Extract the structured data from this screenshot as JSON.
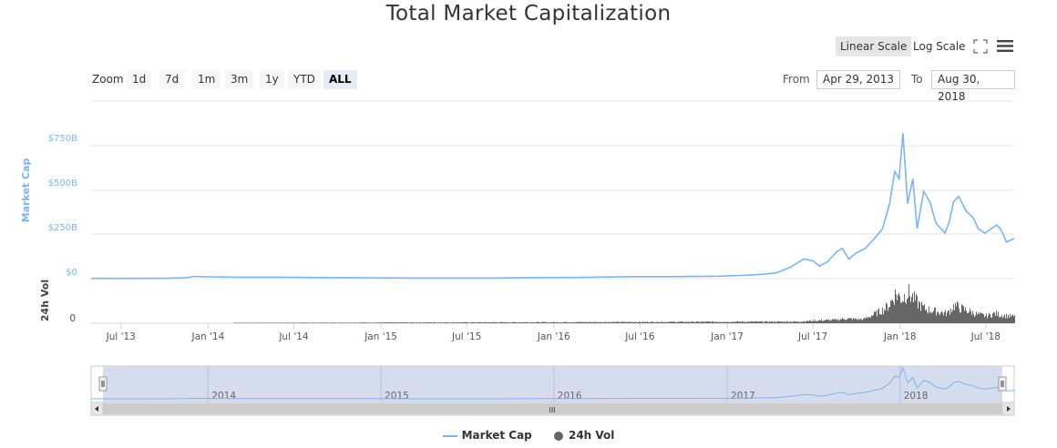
{
  "title": "Total Market Capitalization",
  "toolbar": {
    "linear_label": "Linear Scale",
    "log_label": "Log Scale",
    "fullscreen_icon": "fullscreen-icon",
    "menu_icon": "hamburger-menu-icon"
  },
  "zoom": {
    "label": "Zoom",
    "buttons": [
      "1d",
      "7d",
      "1m",
      "3m",
      "1y",
      "YTD",
      "ALL"
    ],
    "active": "ALL"
  },
  "range": {
    "from_label": "From",
    "from_value": "Apr 29, 2013",
    "to_label": "To",
    "to_value": "Aug 30, 2018"
  },
  "navigator": {
    "year_labels": [
      "2014",
      "2015",
      "2016",
      "2017",
      "2018"
    ],
    "scroll_grip": "III"
  },
  "legend": [
    "Market Cap",
    "24h Vol"
  ],
  "colors": {
    "market_cap": "#7cb5ec",
    "volume": "#666666",
    "navigator_fill": "#ccd6eb"
  },
  "chart_data": {
    "type": "line",
    "title": "Total Market Capitalization",
    "x_range": [
      "2013-04-29",
      "2018-08-30"
    ],
    "x_tick_labels": [
      "Jul '13",
      "Jan '14",
      "Jul '14",
      "Jan '15",
      "Jul '15",
      "Jan '16",
      "Jul '16",
      "Jan '17",
      "Jul '17",
      "Jan '18",
      "Jul '18"
    ],
    "y_axis": {
      "label": "Market Cap",
      "ticks": [
        "$0",
        "$250B",
        "$500B",
        "$750B"
      ],
      "tick_values": [
        0,
        250,
        500,
        750
      ],
      "ylim": [
        0,
        1000
      ]
    },
    "volume_axis": {
      "label": "24h Vol",
      "ticks": [
        "0"
      ]
    },
    "series": [
      {
        "name": "Market Cap",
        "unit": "billion USD",
        "points": [
          [
            "2013-04-29",
            1.5
          ],
          [
            "2013-07-01",
            1.1
          ],
          [
            "2013-10-01",
            1.8
          ],
          [
            "2013-11-15",
            5
          ],
          [
            "2013-12-04",
            13
          ],
          [
            "2014-01-01",
            10
          ],
          [
            "2014-03-01",
            8
          ],
          [
            "2014-06-01",
            8
          ],
          [
            "2014-09-01",
            6
          ],
          [
            "2014-12-01",
            5
          ],
          [
            "2015-03-01",
            3.5
          ],
          [
            "2015-06-01",
            3.5
          ],
          [
            "2015-09-01",
            3.5
          ],
          [
            "2015-12-01",
            6
          ],
          [
            "2016-03-01",
            7
          ],
          [
            "2016-06-15",
            11
          ],
          [
            "2016-09-01",
            11
          ],
          [
            "2016-12-15",
            14
          ],
          [
            "2017-02-01",
            18
          ],
          [
            "2017-03-15",
            24
          ],
          [
            "2017-04-15",
            32
          ],
          [
            "2017-05-15",
            65
          ],
          [
            "2017-06-12",
            110
          ],
          [
            "2017-07-01",
            100
          ],
          [
            "2017-07-15",
            70
          ],
          [
            "2017-08-01",
            95
          ],
          [
            "2017-08-20",
            150
          ],
          [
            "2017-09-01",
            170
          ],
          [
            "2017-09-15",
            110
          ],
          [
            "2017-10-01",
            145
          ],
          [
            "2017-10-20",
            170
          ],
          [
            "2017-11-08",
            225
          ],
          [
            "2017-11-25",
            280
          ],
          [
            "2017-12-10",
            420
          ],
          [
            "2017-12-21",
            600
          ],
          [
            "2017-12-30",
            560
          ],
          [
            "2018-01-07",
            815
          ],
          [
            "2018-01-17",
            420
          ],
          [
            "2018-01-28",
            560
          ],
          [
            "2018-02-06",
            280
          ],
          [
            "2018-02-20",
            490
          ],
          [
            "2018-03-05",
            430
          ],
          [
            "2018-03-18",
            310
          ],
          [
            "2018-04-06",
            255
          ],
          [
            "2018-04-15",
            320
          ],
          [
            "2018-04-24",
            430
          ],
          [
            "2018-05-05",
            460
          ],
          [
            "2018-05-20",
            380
          ],
          [
            "2018-06-05",
            340
          ],
          [
            "2018-06-15",
            280
          ],
          [
            "2018-06-29",
            255
          ],
          [
            "2018-07-10",
            275
          ],
          [
            "2018-07-24",
            300
          ],
          [
            "2018-08-01",
            280
          ],
          [
            "2018-08-14",
            205
          ],
          [
            "2018-08-22",
            215
          ],
          [
            "2018-08-30",
            225
          ]
        ]
      },
      {
        "name": "24h Vol",
        "unit": "relative",
        "points": [
          [
            "2013-04-29",
            0
          ],
          [
            "2017-06-01",
            0.05
          ],
          [
            "2017-07-01",
            0.08
          ],
          [
            "2017-08-15",
            0.1
          ],
          [
            "2017-09-05",
            0.14
          ],
          [
            "2017-10-15",
            0.12
          ],
          [
            "2017-11-10",
            0.3
          ],
          [
            "2017-11-30",
            0.45
          ],
          [
            "2017-12-10",
            0.6
          ],
          [
            "2017-12-22",
            0.9
          ],
          [
            "2018-01-05",
            0.75
          ],
          [
            "2018-01-16",
            0.95
          ],
          [
            "2018-02-05",
            0.65
          ],
          [
            "2018-02-20",
            0.45
          ],
          [
            "2018-03-10",
            0.38
          ],
          [
            "2018-04-10",
            0.3
          ],
          [
            "2018-04-25",
            0.55
          ],
          [
            "2018-05-10",
            0.45
          ],
          [
            "2018-06-10",
            0.28
          ],
          [
            "2018-07-01",
            0.22
          ],
          [
            "2018-07-20",
            0.3
          ],
          [
            "2018-08-01",
            0.25
          ],
          [
            "2018-08-30",
            0.2
          ]
        ]
      }
    ],
    "legend_placement": "bottom-center",
    "grid": true
  }
}
